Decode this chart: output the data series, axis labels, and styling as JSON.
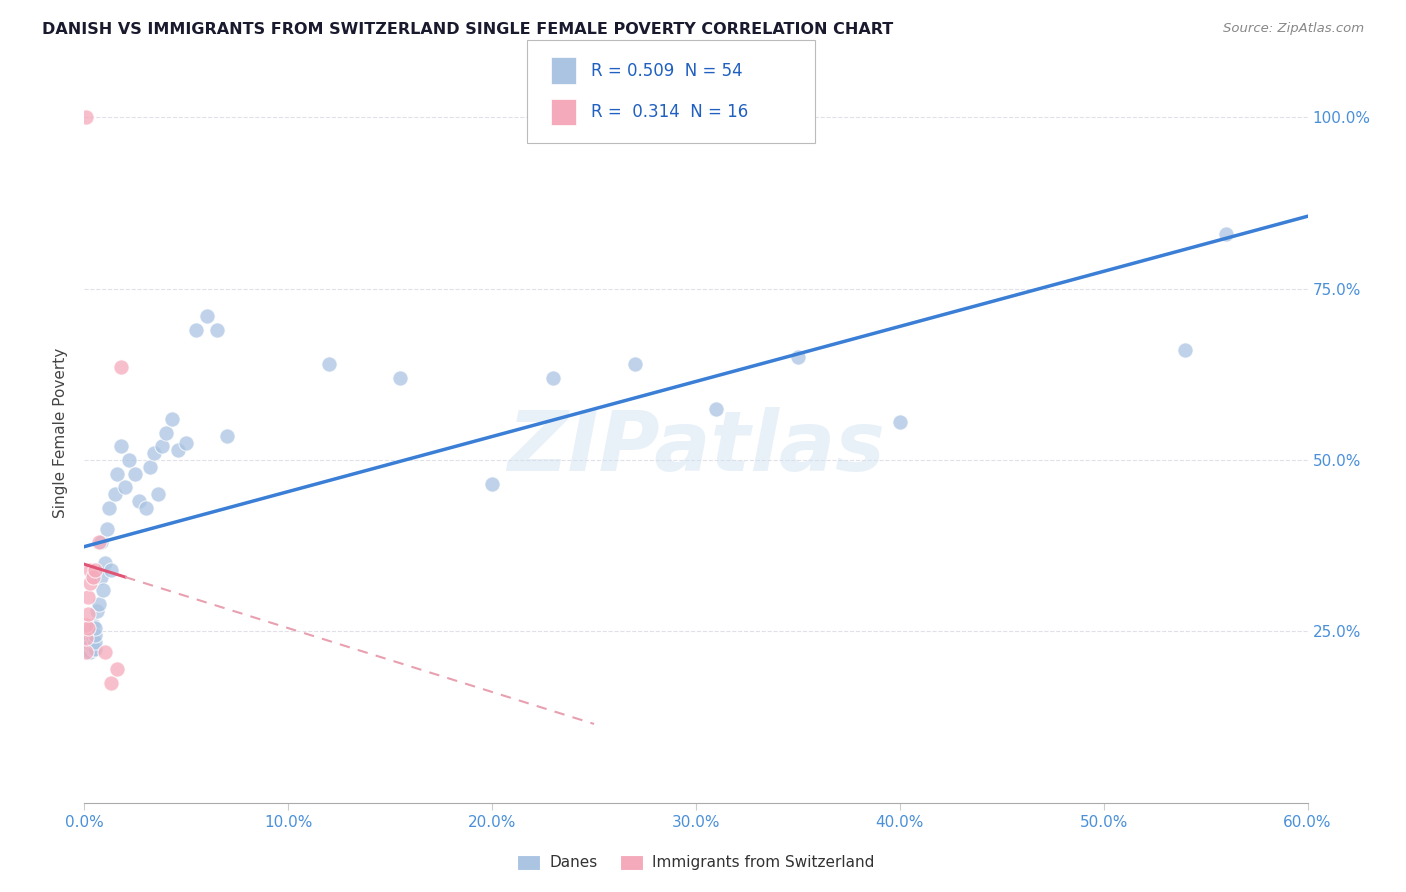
{
  "title": "DANISH VS IMMIGRANTS FROM SWITZERLAND SINGLE FEMALE POVERTY CORRELATION CHART",
  "source": "Source: ZipAtlas.com",
  "ylabel": "Single Female Poverty",
  "legend_R1": "0.509",
  "legend_N1": "54",
  "legend_R2": "0.314",
  "legend_N2": "16",
  "blue_color": "#aac4e2",
  "pink_color": "#f5aabb",
  "blue_line_color": "#3a7fd5",
  "pink_line_color": "#e05575",
  "pink_dash_color": "#e8a0b0",
  "background_color": "#ffffff",
  "watermark": "ZIPatlas",
  "danes_scatter_x": [
    0.001,
    0.001,
    0.002,
    0.002,
    0.002,
    0.003,
    0.003,
    0.003,
    0.004,
    0.004,
    0.004,
    0.005,
    0.005,
    0.005,
    0.005,
    0.006,
    0.007,
    0.008,
    0.008,
    0.009,
    0.01,
    0.011,
    0.012,
    0.013,
    0.015,
    0.016,
    0.018,
    0.02,
    0.022,
    0.025,
    0.027,
    0.03,
    0.032,
    0.034,
    0.036,
    0.038,
    0.04,
    0.043,
    0.046,
    0.05,
    0.055,
    0.06,
    0.065,
    0.07,
    0.12,
    0.155,
    0.2,
    0.23,
    0.27,
    0.31,
    0.35,
    0.4,
    0.54,
    0.56
  ],
  "danes_scatter_y": [
    0.225,
    0.23,
    0.22,
    0.235,
    0.245,
    0.22,
    0.23,
    0.25,
    0.225,
    0.24,
    0.26,
    0.225,
    0.235,
    0.245,
    0.255,
    0.28,
    0.29,
    0.33,
    0.38,
    0.31,
    0.35,
    0.4,
    0.43,
    0.34,
    0.45,
    0.48,
    0.52,
    0.46,
    0.5,
    0.48,
    0.44,
    0.43,
    0.49,
    0.51,
    0.45,
    0.52,
    0.54,
    0.56,
    0.515,
    0.525,
    0.69,
    0.71,
    0.69,
    0.535,
    0.64,
    0.62,
    0.465,
    0.62,
    0.64,
    0.575,
    0.65,
    0.555,
    0.66,
    0.83
  ],
  "swiss_scatter_x": [
    0.001,
    0.001,
    0.001,
    0.002,
    0.002,
    0.002,
    0.003,
    0.003,
    0.004,
    0.005,
    0.007,
    0.01,
    0.013,
    0.016,
    0.018,
    0.001
  ],
  "swiss_scatter_y": [
    0.22,
    0.24,
    0.26,
    0.255,
    0.275,
    0.3,
    0.32,
    0.34,
    0.33,
    0.34,
    0.38,
    0.22,
    0.175,
    0.195,
    0.635,
    1.0
  ],
  "xlim": [
    0.0,
    0.6
  ],
  "ylim": [
    0.0,
    1.08
  ],
  "x_ticks": [
    0.0,
    0.1,
    0.2,
    0.3,
    0.4,
    0.5,
    0.6
  ],
  "x_tick_labels": [
    "0.0%",
    "10.0%",
    "20.0%",
    "30.0%",
    "40.0%",
    "50.0%",
    "60.0%"
  ],
  "y_ticks": [
    0.25,
    0.5,
    0.75,
    1.0
  ],
  "y_tick_labels": [
    "25.0%",
    "50.0%",
    "75.0%",
    "100.0%"
  ],
  "legend_label1": "Danes",
  "legend_label2": "Immigrants from Switzerland"
}
